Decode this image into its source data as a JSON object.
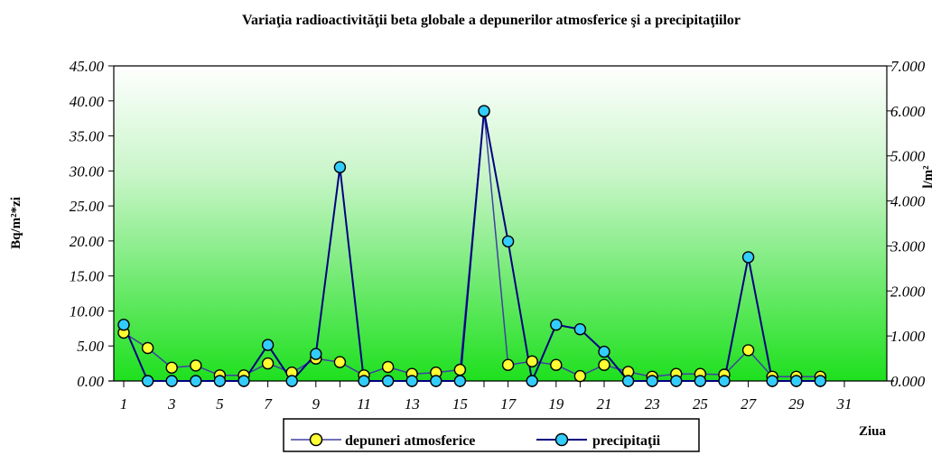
{
  "chart_data": {
    "type": "line",
    "title": "Variaţia radioactivităţii beta globale a depunerilor atmosferice şi a precipitaţiilor",
    "xlabel": "Ziua",
    "ylabel_left": "Bq/m²*zi",
    "ylabel_right": "l/m²",
    "x_ticks": [
      "1",
      "3",
      "5",
      "7",
      "9",
      "11",
      "13",
      "15",
      "17",
      "19",
      "21",
      "23",
      "25",
      "27",
      "29",
      "31"
    ],
    "x_range": [
      1,
      31
    ],
    "ylim_left": [
      0,
      45
    ],
    "ylim_right": [
      0,
      7
    ],
    "y_ticks_left": [
      "0.00",
      "5.00",
      "10.00",
      "15.00",
      "20.00",
      "25.00",
      "30.00",
      "35.00",
      "40.00",
      "45.00"
    ],
    "y_ticks_right": [
      "0.000",
      "1.000",
      "2.000",
      "3.000",
      "4.000",
      "5.000",
      "6.000",
      "7.000"
    ],
    "legend_position": "bottom",
    "grid": false,
    "series": [
      {
        "name": "depuneri atmosferice",
        "axis": "left",
        "line_color": "#4040a0",
        "marker_color": "#ffff33",
        "x": [
          1,
          2,
          3,
          4,
          5,
          6,
          7,
          8,
          9,
          10,
          11,
          12,
          13,
          14,
          15,
          16,
          17,
          18,
          19,
          20,
          21,
          22,
          23,
          24,
          25,
          26,
          27,
          28,
          29,
          30
        ],
        "values": [
          6.9,
          4.7,
          1.9,
          2.2,
          0.8,
          0.8,
          2.5,
          1.2,
          3.2,
          2.7,
          0.8,
          2.0,
          1.0,
          1.2,
          1.6,
          38.5,
          2.3,
          2.8,
          2.3,
          0.7,
          2.3,
          1.3,
          0.6,
          1.0,
          1.0,
          0.9,
          4.4,
          0.6,
          0.6,
          0.6
        ]
      },
      {
        "name": "precipitaţii",
        "axis": "right",
        "line_color": "#000080",
        "marker_color": "#33ccff",
        "x": [
          1,
          2,
          3,
          4,
          5,
          6,
          7,
          8,
          9,
          10,
          11,
          12,
          13,
          14,
          15,
          16,
          17,
          18,
          19,
          20,
          21,
          22,
          23,
          24,
          25,
          26,
          27,
          28,
          29,
          30
        ],
        "values": [
          1.25,
          0.0,
          0.0,
          0.0,
          0.0,
          0.0,
          0.8,
          0.0,
          0.6,
          4.75,
          0.0,
          0.0,
          0.0,
          0.0,
          0.0,
          6.0,
          3.1,
          0.0,
          1.25,
          1.15,
          0.65,
          0.0,
          0.0,
          0.0,
          0.0,
          0.0,
          2.75,
          0.0,
          0.0,
          0.0
        ]
      }
    ]
  }
}
